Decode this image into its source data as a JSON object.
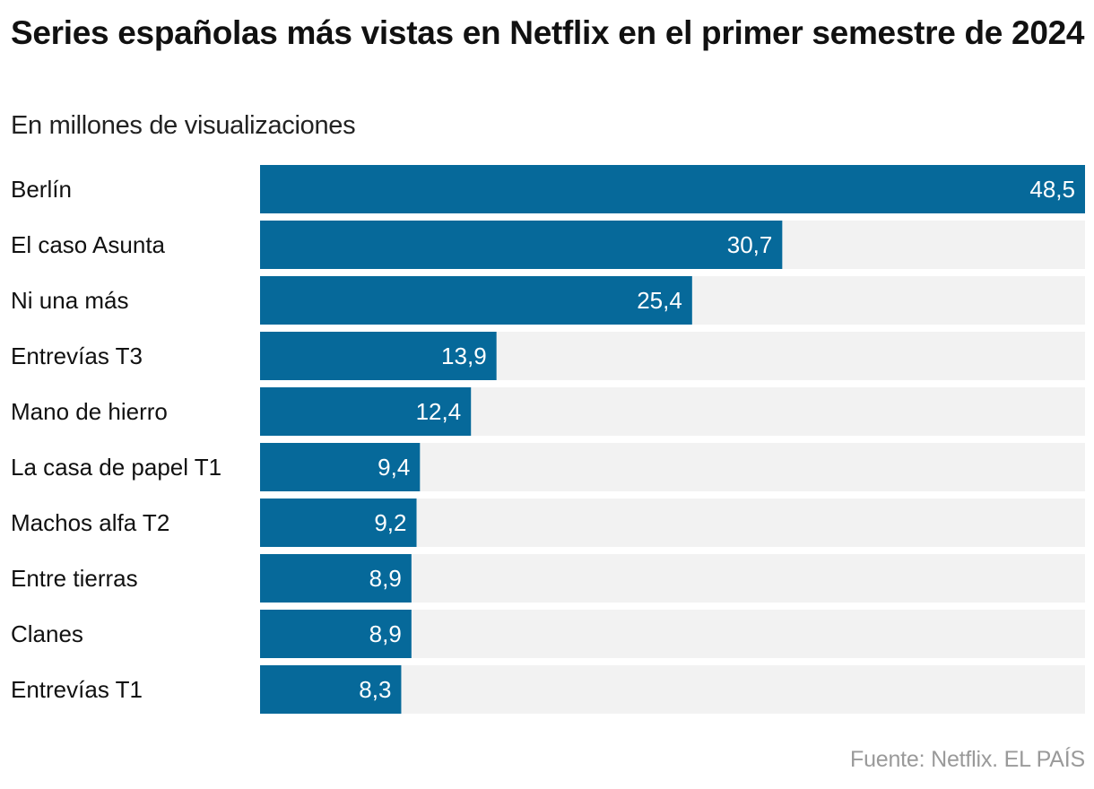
{
  "chart_data": {
    "type": "bar",
    "orientation": "horizontal",
    "title": "Series españolas más vistas en Netflix en el primer semestre de 2024",
    "subtitle": "En millones de visualizaciones",
    "categories": [
      "Berlín",
      "El caso Asunta",
      "Ni una más",
      "Entrevías T3",
      "Mano de hierro",
      "La casa de papel T1",
      "Machos alfa T2",
      "Entre tierras",
      "Clanes",
      "Entrevías T1"
    ],
    "values": [
      48.5,
      30.7,
      25.4,
      13.9,
      12.4,
      9.4,
      9.2,
      8.9,
      8.9,
      8.3
    ],
    "value_labels": [
      "48,5",
      "30,7",
      "25,4",
      "13,9",
      "12,4",
      "9,4",
      "9,2",
      "8,9",
      "8,9",
      "8,3"
    ],
    "xlim": [
      0,
      48.5
    ],
    "xlabel": "",
    "ylabel": "",
    "grid": false,
    "legend": "none",
    "colors": {
      "bar": "#06699a",
      "track": "#f2f2f2",
      "label_inside": "#ffffff",
      "category_text": "#111111"
    },
    "source": "Fuente: Netflix. EL PAÍS"
  }
}
